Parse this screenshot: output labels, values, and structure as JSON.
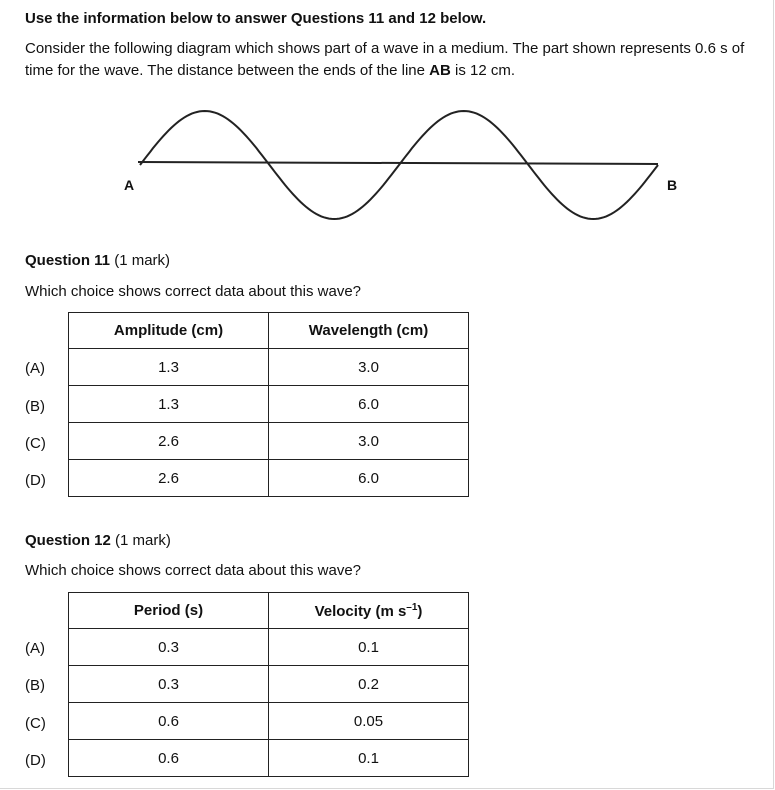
{
  "intro": {
    "heading": "Use the information below to answer Questions 11 and 12 below.",
    "text_part1": "Consider the following diagram which shows part of a wave in a medium. The part shown represents 0.6 s of time for the wave. The distance between the ends of the line ",
    "text_bold": "AB",
    "text_part2": " is 12 cm."
  },
  "diagram": {
    "label_a": "A",
    "label_b": "B"
  },
  "q11": {
    "title": "Question 11",
    "marks": " (1 mark)",
    "prompt": "Which choice shows correct data about this wave?",
    "headers": [
      "Amplitude (cm)",
      "Wavelength (cm)"
    ],
    "rows": [
      {
        "label": "(A)",
        "c1": "1.3",
        "c2": "3.0"
      },
      {
        "label": "(B)",
        "c1": "1.3",
        "c2": "6.0"
      },
      {
        "label": "(C)",
        "c1": "2.6",
        "c2": "3.0"
      },
      {
        "label": "(D)",
        "c1": "2.6",
        "c2": "6.0"
      }
    ]
  },
  "q12": {
    "title": "Question 12",
    "marks": " (1 mark)",
    "prompt": "Which choice shows correct data about this wave?",
    "headers": [
      "Period (s)",
      "Velocity (m s",
      "–1",
      ")"
    ],
    "rows": [
      {
        "label": "(A)",
        "c1": "0.3",
        "c2": "0.1"
      },
      {
        "label": "(B)",
        "c1": "0.3",
        "c2": "0.2"
      },
      {
        "label": "(C)",
        "c1": "0.6",
        "c2": "0.05"
      },
      {
        "label": "(D)",
        "c1": "0.6",
        "c2": "0.1"
      }
    ]
  }
}
